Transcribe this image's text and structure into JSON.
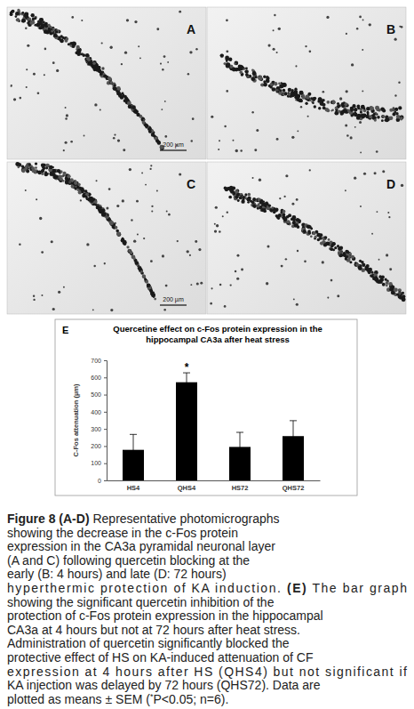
{
  "figure": {
    "panels": [
      {
        "label": "A",
        "scale_bar": "200 µm"
      },
      {
        "label": "B"
      },
      {
        "label": "C",
        "scale_bar": "200 µm"
      },
      {
        "label": "D"
      }
    ],
    "chart_label": "E",
    "caption_lines": [
      [
        {
          "text": "Figure 8 (A-D)",
          "style": "bold"
        },
        {
          "text": " Representative photomicrographs"
        }
      ],
      [
        {
          "text": "showing the decrease in the c-Fos protein"
        }
      ],
      [
        {
          "text": "expression in the CA3a pyramidal neuronal layer"
        }
      ],
      [
        {
          "text": "(A and C) following quercetin blocking at the"
        }
      ],
      [
        {
          "text": "early (B: 4 hours) and late (D: 72 hours)"
        }
      ],
      [
        {
          "text": "hyperthermic protection of KA induction. "
        },
        {
          "text": "(E)",
          "style": "bold"
        },
        {
          "text": " The bar graph"
        }
      ],
      [
        {
          "text": "showing the significant quercetin inhibition of the"
        }
      ],
      [
        {
          "text": "protection of c-Fos protein expression in the hippocampal"
        }
      ],
      [
        {
          "text": "CA3a at 4 hours but not at 72 hours after heat stress."
        }
      ],
      [
        {
          "text": "Administration of quercetin significantly blocked the"
        }
      ],
      [
        {
          "text": "protective effect of HS on KA-induced attenuation of CF"
        }
      ],
      [
        {
          "text": "expression at 4 hours after HS (QHS4) but not significant if"
        }
      ],
      [
        {
          "text": "KA injection was delayed by 72 hours (QHS72). Data are"
        }
      ],
      [
        {
          "text": "plotted as means ± SEM ("
        },
        {
          "text": "*",
          "style": "sup"
        },
        {
          "text": "P<0.05; n=6)."
        }
      ]
    ]
  },
  "chart_data": {
    "type": "bar",
    "title": "Quercetine effect on c-Fos protein expression in the hippocampal CA3a after heat stress",
    "y_label": "C-Fos attenuation (µm)",
    "categories": [
      "HS4",
      "QHS4",
      "HS72",
      "QHS72"
    ],
    "values": [
      178,
      572,
      195,
      258
    ],
    "errors": [
      90,
      55,
      85,
      90
    ],
    "color": "#000000",
    "ylim": [
      0,
      700
    ],
    "yticks": [
      0,
      100,
      200,
      300,
      400,
      500,
      600,
      700
    ],
    "grid": false,
    "annotations": [
      {
        "text": "*",
        "category": "QHS4"
      }
    ]
  }
}
